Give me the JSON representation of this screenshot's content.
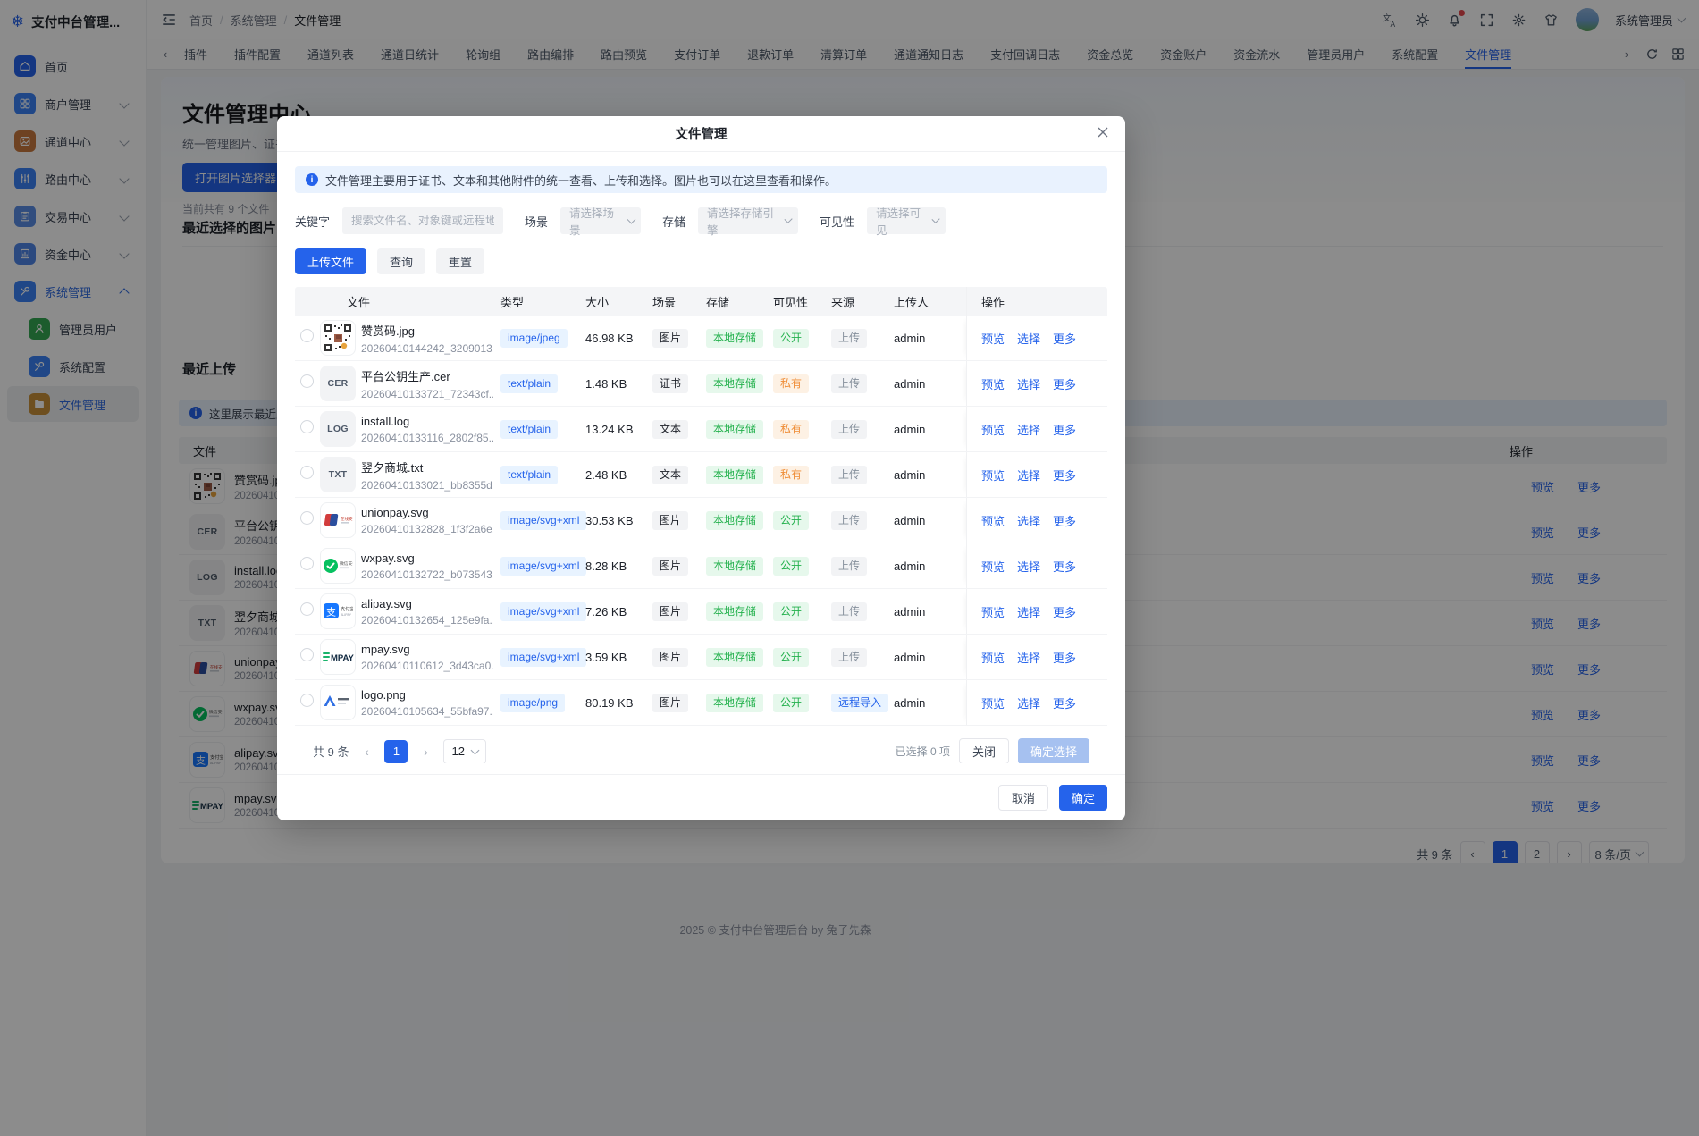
{
  "brand": {
    "title": "支付中台管理...",
    "icon": "snowflake"
  },
  "breadcrumb": {
    "items": [
      "首页",
      "系统管理",
      "文件管理"
    ]
  },
  "header": {
    "user": "系统管理员",
    "icons": [
      {
        "name": "translate-icon"
      },
      {
        "name": "theme-sun-icon"
      },
      {
        "name": "bell-icon",
        "badge": true
      },
      {
        "name": "fullscreen-icon"
      },
      {
        "name": "gear-icon"
      },
      {
        "name": "appearance-icon"
      }
    ]
  },
  "tabs": {
    "active": "文件管理",
    "items": [
      "插件",
      "插件配置",
      "通道列表",
      "通道日统计",
      "轮询组",
      "路由编排",
      "路由预览",
      "支付订单",
      "退款订单",
      "清算订单",
      "通道通知日志",
      "支付回调日志",
      "资金总览",
      "资金账户",
      "资金流水",
      "管理员用户",
      "系统配置",
      "文件管理"
    ]
  },
  "sidebar": {
    "items": [
      {
        "id": "home",
        "label": "首页",
        "icon": "home",
        "color": "#2563eb"
      },
      {
        "id": "merchant",
        "label": "商户管理",
        "icon": "grid",
        "color": "#3b82f6",
        "chevron": "down"
      },
      {
        "id": "channel",
        "label": "通道中心",
        "icon": "channel",
        "color": "#c8793e",
        "chevron": "down"
      },
      {
        "id": "route",
        "label": "路由中心",
        "icon": "route",
        "color": "#3b82f6",
        "chevron": "down"
      },
      {
        "id": "trade",
        "label": "交易中心",
        "icon": "trade",
        "color": "#5a8de6",
        "chevron": "down"
      },
      {
        "id": "fund",
        "label": "资金中心",
        "icon": "fund",
        "color": "#4f86e8",
        "chevron": "down"
      },
      {
        "id": "system",
        "label": "系统管理",
        "icon": "system",
        "color": "#3b82f6",
        "chevron": "up",
        "active": true
      },
      {
        "id": "admin-users",
        "label": "管理员用户",
        "icon": "user",
        "color": "#34a853",
        "sub": true
      },
      {
        "id": "system-config",
        "label": "系统配置",
        "icon": "config",
        "color": "#3b82f6",
        "sub": true
      },
      {
        "id": "file-management",
        "label": "文件管理",
        "icon": "folder",
        "color": "#c9913a",
        "sub": true,
        "selected": true
      }
    ]
  },
  "page": {
    "hero": {
      "title": "文件管理中心",
      "subtitle": "统一管理图片、证书、文",
      "button": "打开图片选择器",
      "count": "当前共有 9 个文件"
    },
    "sections": {
      "recent_selected": "最近选择的图片",
      "recent_upload": "最近上传",
      "upload_hint": "这里展示最近上传"
    },
    "bg_table": {
      "file_header": "文件",
      "op_header": "操作",
      "actions": [
        {
          "label": "预览",
          "name": "preview"
        },
        {
          "label": "更多",
          "name": "more"
        }
      ],
      "rows": [
        {
          "name": "赞赏码.jpg",
          "key": "20260410144242_3209013",
          "thumb": "qr"
        },
        {
          "name": "平台公钥生产.cer",
          "key": "20260410133721_72343cf",
          "thumb": "CER"
        },
        {
          "name": "install.log",
          "key": "20260410133116_2802f85",
          "thumb": "LOG"
        },
        {
          "name": "翌夕商城.txt",
          "key": "20260410133021_bb8355d",
          "thumb": "TXT"
        },
        {
          "name": "unionpay.svg",
          "key": "20260410132828_1f3f2a6e",
          "thumb": "unionpay"
        },
        {
          "name": "wxpay.svg",
          "key": "20260410132722_b073543",
          "thumb": "wxpay"
        },
        {
          "name": "alipay.svg",
          "key": "20260410132654_125e9fa",
          "thumb": "alipay"
        },
        {
          "name": "mpay.svg",
          "key": "20260410110612_3d43ca0",
          "thumb": "mpay"
        }
      ]
    },
    "pagination": {
      "total": "共 9 条",
      "pages": [
        "1",
        "2"
      ],
      "active": "1",
      "size": "8 条/页"
    },
    "footer": "2025 © 支付中台管理后台 by 兔子先森"
  },
  "modal": {
    "title": "文件管理",
    "alert": "文件管理主要用于证书、文本和其他附件的统一查看、上传和选择。图片也可以在这里查看和操作。",
    "filters": {
      "keyword_label": "关键字",
      "keyword_placeholder": "搜索文件名、对象键或远程地址",
      "scene_label": "场景",
      "scene_placeholder": "请选择场景",
      "storage_label": "存储",
      "storage_placeholder": "请选择存储引擎",
      "visibility_label": "可见性",
      "visibility_placeholder": "请选择可见"
    },
    "buttons": {
      "upload": "上传文件",
      "query": "查询",
      "reset": "重置"
    },
    "table": {
      "headers": [
        "文件",
        "类型",
        "大小",
        "场景",
        "存储",
        "可见性",
        "来源",
        "上传人",
        "操作"
      ],
      "actions": [
        {
          "label": "预览",
          "name": "preview"
        },
        {
          "label": "选择",
          "name": "select"
        },
        {
          "label": "更多",
          "name": "more"
        }
      ],
      "rows": [
        {
          "thumb": "qr",
          "name": "赞赏码.jpg",
          "key": "20260410144242_3209013...",
          "type": "image/jpeg",
          "size": "46.98 KB",
          "scene": "图片",
          "storage": "本地存储",
          "visibility": "公开",
          "visibility_style": "green",
          "source": "上传",
          "source_style": "gray",
          "uploader": "admin"
        },
        {
          "thumb": "CER",
          "name": "平台公钥生产.cer",
          "key": "20260410133721_72343cf...",
          "type": "text/plain",
          "size": "1.48 KB",
          "scene": "证书",
          "storage": "本地存储",
          "visibility": "私有",
          "visibility_style": "orange",
          "source": "上传",
          "source_style": "gray",
          "uploader": "admin"
        },
        {
          "thumb": "LOG",
          "name": "install.log",
          "key": "20260410133116_2802f85...",
          "type": "text/plain",
          "size": "13.24 KB",
          "scene": "文本",
          "storage": "本地存储",
          "visibility": "私有",
          "visibility_style": "orange",
          "source": "上传",
          "source_style": "gray",
          "uploader": "admin"
        },
        {
          "thumb": "TXT",
          "name": "翌夕商城.txt",
          "key": "20260410133021_bb8355d...",
          "type": "text/plain",
          "size": "2.48 KB",
          "scene": "文本",
          "storage": "本地存储",
          "visibility": "私有",
          "visibility_style": "orange",
          "source": "上传",
          "source_style": "gray",
          "uploader": "admin"
        },
        {
          "thumb": "unionpay",
          "name": "unionpay.svg",
          "key": "20260410132828_1f3f2a6e...",
          "type": "image/svg+xml",
          "size": "30.53 KB",
          "scene": "图片",
          "storage": "本地存储",
          "visibility": "公开",
          "visibility_style": "green",
          "source": "上传",
          "source_style": "gray",
          "uploader": "admin"
        },
        {
          "thumb": "wxpay",
          "name": "wxpay.svg",
          "key": "20260410132722_b073543...",
          "type": "image/svg+xml",
          "size": "8.28 KB",
          "scene": "图片",
          "storage": "本地存储",
          "visibility": "公开",
          "visibility_style": "green",
          "source": "上传",
          "source_style": "gray",
          "uploader": "admin"
        },
        {
          "thumb": "alipay",
          "name": "alipay.svg",
          "key": "20260410132654_125e9fa...",
          "type": "image/svg+xml",
          "size": "7.26 KB",
          "scene": "图片",
          "storage": "本地存储",
          "visibility": "公开",
          "visibility_style": "green",
          "source": "上传",
          "source_style": "gray",
          "uploader": "admin"
        },
        {
          "thumb": "mpay",
          "name": "mpay.svg",
          "key": "20260410110612_3d43ca0...",
          "type": "image/svg+xml",
          "size": "3.59 KB",
          "scene": "图片",
          "storage": "本地存储",
          "visibility": "公开",
          "visibility_style": "green",
          "source": "上传",
          "source_style": "gray",
          "uploader": "admin"
        },
        {
          "thumb": "logo",
          "name": "logo.png",
          "key": "20260410105634_55bfa97...",
          "type": "image/png",
          "size": "80.19 KB",
          "scene": "图片",
          "storage": "本地存储",
          "visibility": "公开",
          "visibility_style": "green",
          "source": "远程导入",
          "source_style": "blue",
          "uploader": "admin"
        }
      ]
    },
    "pagination": {
      "total": "共 9 条",
      "page": "1",
      "page_size": "12",
      "selected": "已选择 0 项",
      "close": "关闭",
      "confirm": "确定选择"
    },
    "footer": {
      "cancel": "取消",
      "ok": "确定"
    }
  }
}
